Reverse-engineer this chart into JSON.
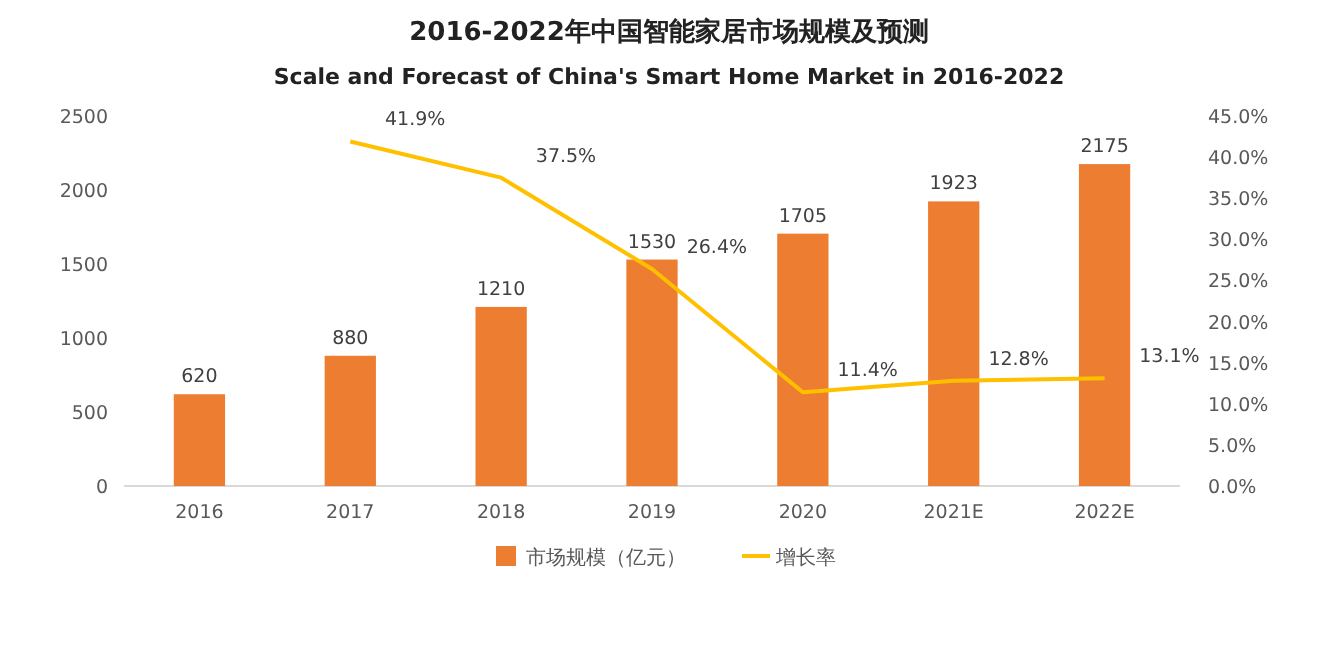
{
  "chart_data": {
    "type": "bar",
    "title": "2016-2022年中国智能家居市场规模及预测",
    "subtitle": "Scale and Forecast of China's Smart Home Market in 2016-2022",
    "categories": [
      "2016",
      "2017",
      "2018",
      "2019",
      "2020",
      "2021E",
      "2022E"
    ],
    "series": [
      {
        "name": "市场规模（亿元）",
        "color": "#ed7d31",
        "values": [
          620,
          880,
          1210,
          1530,
          1705,
          1923,
          2175
        ],
        "value_labels": [
          "620",
          "880",
          "1210",
          "1530",
          "1705",
          "1923",
          "2175"
        ]
      },
      {
        "name": "增长率",
        "type": "line",
        "axis": "y2",
        "color": "#ffc000",
        "values": [
          null,
          41.9,
          37.5,
          26.4,
          11.4,
          12.8,
          13.1
        ],
        "value_labels": [
          null,
          "41.9%",
          "37.5%",
          "26.4%",
          "11.4%",
          "12.8%",
          "13.1%"
        ]
      }
    ],
    "ylim": [
      0,
      2500
    ],
    "yticks": [
      0,
      500,
      1000,
      1500,
      2000,
      2500
    ],
    "y2lim": [
      0,
      45
    ],
    "y2ticks": [
      {
        "value": 0,
        "label": "0.0%"
      },
      {
        "value": 5,
        "label": "5.0%"
      },
      {
        "value": 10,
        "label": "10.0%"
      },
      {
        "value": 15,
        "label": "15.0%"
      },
      {
        "value": 20,
        "label": "20.0%"
      },
      {
        "value": 25,
        "label": "25.0%"
      },
      {
        "value": 30,
        "label": "30.0%"
      },
      {
        "value": 35,
        "label": "35.0%"
      },
      {
        "value": 40,
        "label": "40.0%"
      },
      {
        "value": 45,
        "label": "45.0%"
      }
    ],
    "legend": "bottom"
  }
}
